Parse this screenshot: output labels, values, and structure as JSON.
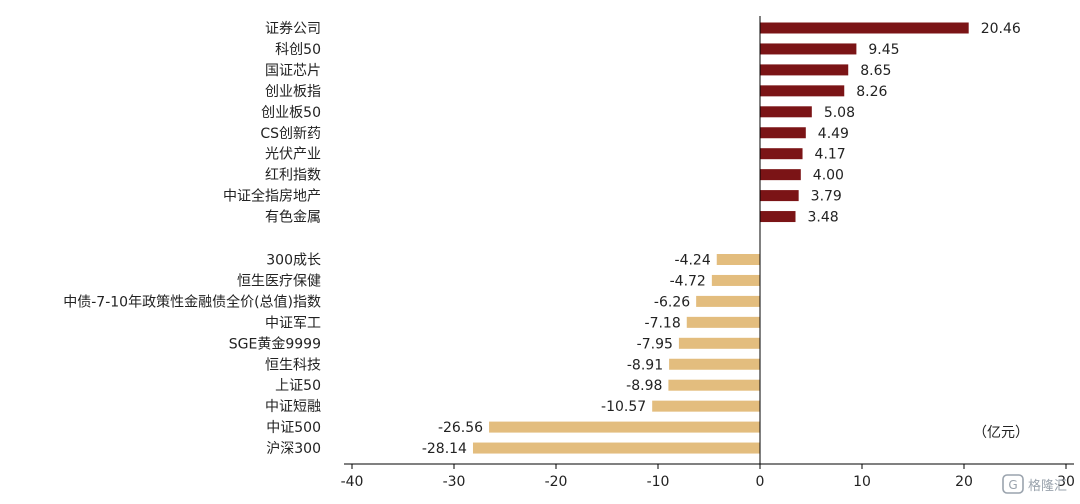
{
  "chart_data": {
    "type": "bar",
    "orientation": "horizontal",
    "unit_label": "（亿元）",
    "xlim": [
      -40,
      30
    ],
    "xticks": [
      -40,
      -30,
      -20,
      -10,
      0,
      10,
      20,
      30
    ],
    "grid": false,
    "categories": [
      "证券公司",
      "科创50",
      "国证芯片",
      "创业板指",
      "创业板50",
      "CS创新药",
      "光伏产业",
      "红利指数",
      "中证全指房地产",
      "有色金属",
      "300成长",
      "恒生医疗保健",
      "中债-7-10年政策性金融债全价(总值)指数",
      "中证军工",
      "SGE黄金9999",
      "恒生科技",
      "上证50",
      "中证短融",
      "中证500",
      "沪深300"
    ],
    "values": [
      20.46,
      9.45,
      8.65,
      8.26,
      5.08,
      4.49,
      4.17,
      4.0,
      3.79,
      3.48,
      -4.24,
      -4.72,
      -6.26,
      -7.18,
      -7.95,
      -8.91,
      -8.98,
      -10.57,
      -26.56,
      -28.14
    ],
    "value_labels": [
      "20.46",
      "9.45",
      "8.65",
      "8.26",
      "5.08",
      "4.49",
      "4.17",
      "4.00",
      "3.79",
      "3.48",
      "-4.24",
      "-4.72",
      "-6.26",
      "-7.18",
      "-7.95",
      "-8.91",
      "-8.98",
      "-10.57",
      "-26.56",
      "-28.14"
    ],
    "colors": {
      "positive": "#7b1416",
      "negative": "#e3bd7e"
    }
  },
  "watermark": {
    "text": "格隆汇"
  }
}
